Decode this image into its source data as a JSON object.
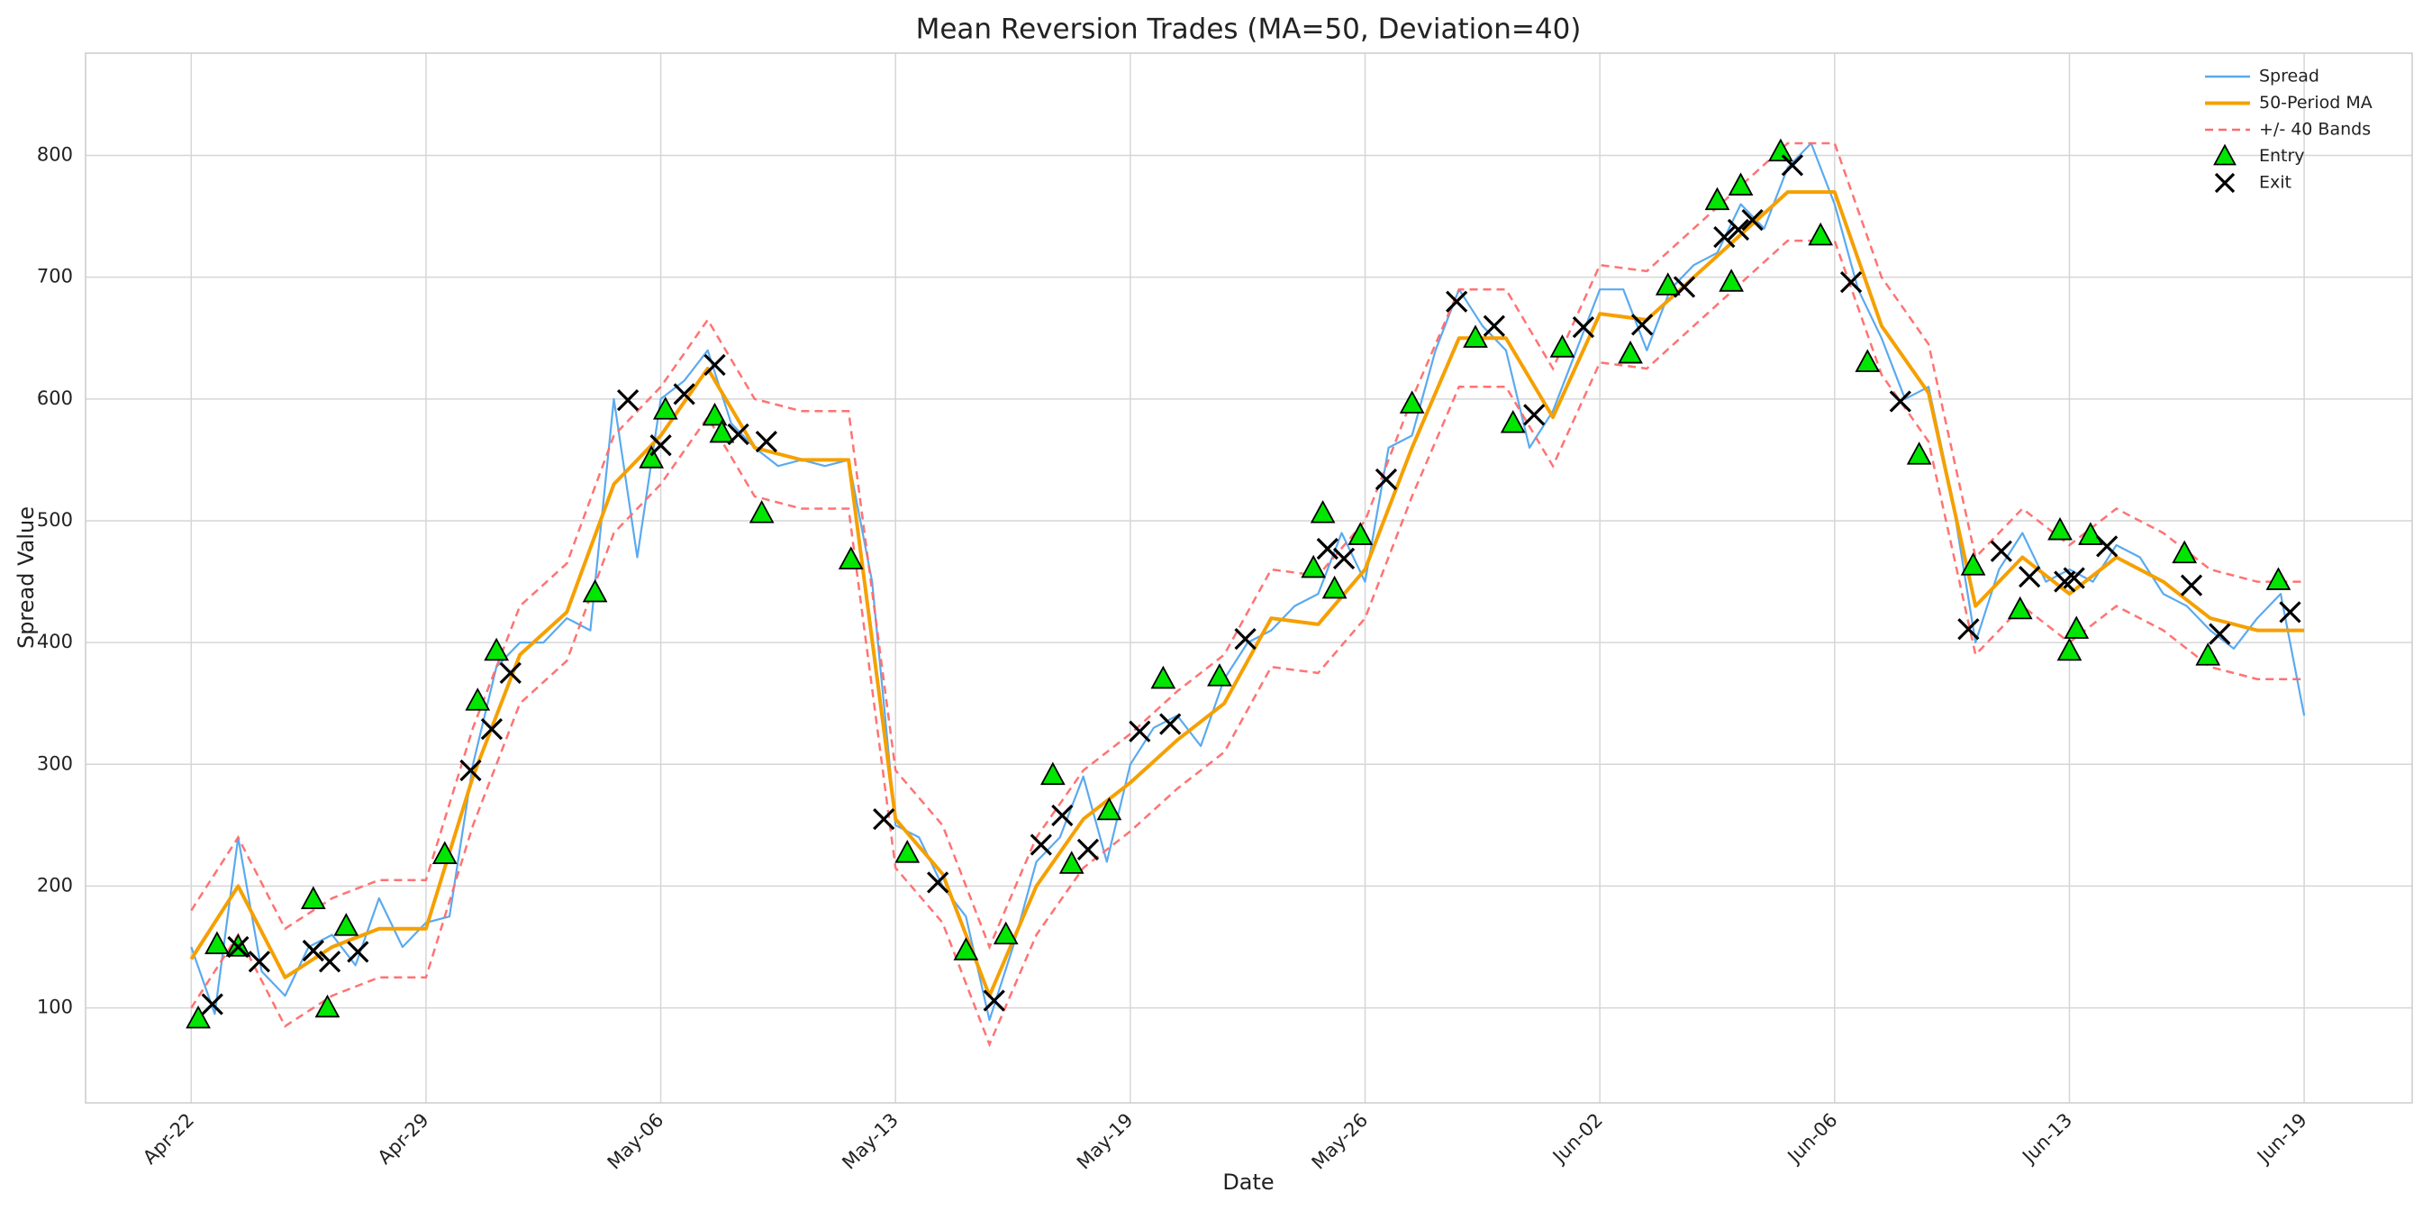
{
  "chart_data": {
    "type": "line",
    "title": "Mean Reversion Trades (MA=50, Deviation=40)",
    "x_label": "Date",
    "y_label": "Spread Value",
    "xlim": [
      -45,
      946
    ],
    "ylim": [
      22,
      884
    ],
    "xticks": [
      {
        "value": 0,
        "label": "Apr-22"
      },
      {
        "value": 100,
        "label": "Apr-29"
      },
      {
        "value": 200,
        "label": "May-06"
      },
      {
        "value": 300,
        "label": "May-13"
      },
      {
        "value": 400,
        "label": "May-19"
      },
      {
        "value": 500,
        "label": "May-26"
      },
      {
        "value": 600,
        "label": "Jun-02"
      },
      {
        "value": 700,
        "label": "Jun-06"
      },
      {
        "value": 800,
        "label": "Jun-13"
      },
      {
        "value": 900,
        "label": "Jun-19"
      }
    ],
    "yticks": [
      100,
      200,
      300,
      400,
      500,
      600,
      700,
      800
    ],
    "grid": true,
    "legend": "upper right",
    "series": [
      {
        "name": "Spread",
        "kind": "line",
        "color": "#5aaaf0",
        "x": [
          0,
          10,
          20,
          30,
          40,
          50,
          60,
          70,
          80,
          90,
          100,
          110,
          120,
          130,
          140,
          150,
          160,
          170,
          180,
          190,
          200,
          210,
          220,
          230,
          240,
          250,
          260,
          270,
          280,
          290,
          300,
          310,
          320,
          330,
          340,
          350,
          360,
          370,
          380,
          390,
          400,
          410,
          420,
          430,
          440,
          450,
          460,
          470,
          480,
          490,
          500,
          510,
          520,
          530,
          540,
          550,
          560,
          570,
          580,
          590,
          600,
          610,
          620,
          630,
          640,
          650,
          660,
          670,
          680,
          690,
          700,
          710,
          720,
          730,
          740,
          750,
          760,
          770,
          780,
          790,
          800,
          810,
          820,
          830,
          840,
          850,
          860,
          870,
          880,
          890,
          900
        ],
        "values": [
          150,
          95,
          240,
          130,
          110,
          150,
          160,
          135,
          190,
          150,
          170,
          175,
          300,
          380,
          400,
          400,
          420,
          410,
          600,
          470,
          600,
          615,
          640,
          580,
          560,
          545,
          550,
          545,
          550,
          450,
          250,
          240,
          200,
          175,
          90,
          150,
          220,
          240,
          290,
          220,
          300,
          330,
          340,
          315,
          370,
          400,
          410,
          430,
          440,
          490,
          450,
          560,
          570,
          640,
          690,
          660,
          640,
          560,
          590,
          640,
          690,
          690,
          640,
          690,
          710,
          720,
          760,
          740,
          790,
          810,
          760,
          690,
          650,
          600,
          610,
          520,
          400,
          460,
          490,
          450,
          460,
          450,
          480,
          470,
          440,
          430,
          410,
          395,
          420,
          440,
          340
        ]
      },
      {
        "name": "50-Period MA",
        "kind": "line",
        "color": "#f5a000",
        "x": [
          0,
          20,
          40,
          60,
          80,
          100,
          120,
          140,
          160,
          180,
          200,
          220,
          240,
          260,
          280,
          300,
          320,
          340,
          360,
          380,
          400,
          420,
          440,
          460,
          480,
          500,
          520,
          540,
          560,
          580,
          600,
          620,
          640,
          660,
          680,
          700,
          720,
          740,
          760,
          780,
          800,
          820,
          840,
          860,
          880,
          900
        ],
        "values": [
          140,
          200,
          125,
          150,
          165,
          165,
          290,
          390,
          425,
          530,
          570,
          625,
          560,
          550,
          550,
          255,
          210,
          110,
          200,
          255,
          285,
          320,
          350,
          420,
          415,
          460,
          560,
          650,
          650,
          585,
          670,
          665,
          700,
          735,
          770,
          770,
          660,
          605,
          430,
          470,
          440,
          470,
          450,
          420,
          410,
          410
        ]
      },
      {
        "name": "+/- 40 Bands",
        "kind": "dashed",
        "color": "#ff6b6b",
        "x": [
          0,
          20,
          40,
          60,
          80,
          100,
          120,
          140,
          160,
          180,
          200,
          220,
          240,
          260,
          280,
          300,
          320,
          340,
          360,
          380,
          400,
          420,
          440,
          460,
          480,
          500,
          520,
          540,
          560,
          580,
          600,
          620,
          640,
          660,
          680,
          700,
          720,
          740,
          760,
          780,
          800,
          820,
          840,
          860,
          880,
          900
        ],
        "values": [
          180,
          240,
          165,
          190,
          205,
          205,
          330,
          430,
          465,
          570,
          610,
          665,
          600,
          590,
          590,
          295,
          250,
          150,
          240,
          295,
          325,
          360,
          390,
          460,
          455,
          500,
          600,
          690,
          690,
          625,
          710,
          705,
          740,
          775,
          810,
          810,
          700,
          645,
          470,
          510,
          480,
          510,
          490,
          460,
          450,
          450
        ],
        "lower": [
          100,
          160,
          85,
          110,
          125,
          125,
          250,
          350,
          385,
          490,
          530,
          585,
          520,
          510,
          510,
          215,
          170,
          70,
          160,
          215,
          245,
          280,
          310,
          380,
          375,
          420,
          520,
          610,
          610,
          545,
          630,
          625,
          660,
          695,
          730,
          730,
          620,
          565,
          390,
          430,
          400,
          430,
          410,
          380,
          370,
          370
        ]
      },
      {
        "name": "Entry",
        "kind": "triangle",
        "color": "#00e600",
        "x": [
          3,
          11,
          20,
          52,
          58,
          66,
          108,
          122,
          130,
          172,
          196,
          202,
          223,
          226,
          243,
          281,
          305,
          330,
          347,
          367,
          375,
          391,
          414,
          438,
          478,
          482,
          487,
          498,
          520,
          547,
          563,
          584,
          613,
          629,
          650,
          656,
          660,
          677,
          694,
          714,
          736,
          759,
          779,
          796,
          800,
          803,
          809,
          849,
          859,
          889
        ],
        "values": [
          91,
          152,
          150,
          189,
          100,
          167,
          226,
          352,
          393,
          441,
          551,
          591,
          586,
          572,
          506,
          468,
          227,
          147,
          160,
          291,
          218,
          262,
          370,
          372,
          461,
          506,
          444,
          488,
          596,
          650,
          580,
          642,
          637,
          693,
          763,
          696,
          775,
          803,
          734,
          630,
          554,
          463,
          427,
          492,
          393,
          411,
          488,
          473,
          389,
          451
        ]
      },
      {
        "name": "Exit",
        "kind": "cross",
        "color": "#000000",
        "x": [
          9,
          20,
          29,
          52,
          59,
          71,
          119,
          128,
          136,
          186,
          200,
          210,
          223,
          233,
          245,
          295,
          318,
          342,
          362,
          371,
          382,
          404,
          417,
          449,
          484,
          491,
          509,
          539,
          555,
          572,
          593,
          618,
          636,
          653,
          659,
          665,
          682,
          707,
          728,
          757,
          771,
          783,
          798,
          802,
          816,
          852,
          864,
          894
        ],
        "values": [
          103,
          150,
          138,
          147,
          138,
          146,
          295,
          329,
          375,
          599,
          562,
          604,
          628,
          571,
          565,
          255,
          203,
          106,
          234,
          258,
          230,
          327,
          333,
          403,
          477,
          469,
          534,
          680,
          660,
          587,
          659,
          661,
          692,
          733,
          739,
          747,
          792,
          696,
          598,
          411,
          475,
          454,
          450,
          453,
          479,
          447,
          407,
          425
        ]
      }
    ]
  }
}
